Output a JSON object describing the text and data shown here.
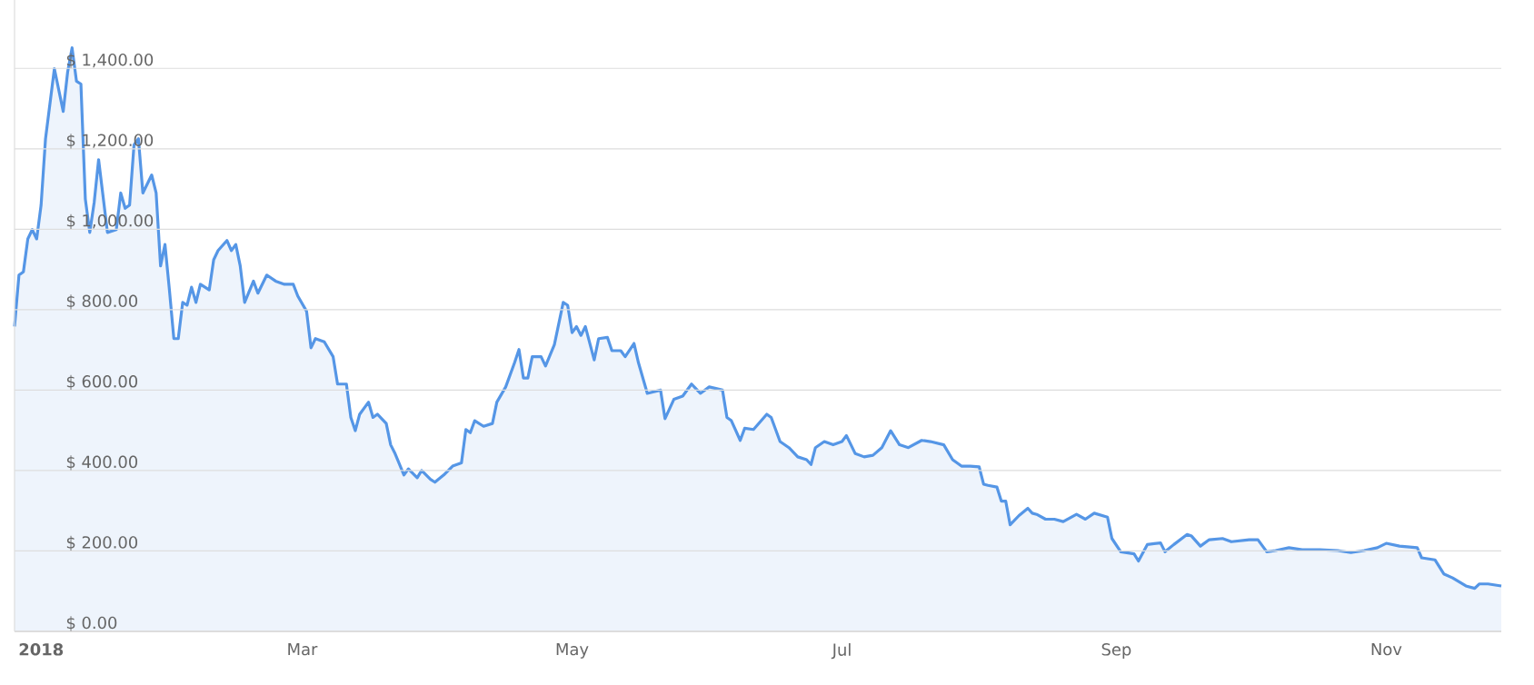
{
  "chart_data": {
    "type": "area",
    "grid": "y",
    "xlim": [
      "2017-12-26",
      "2018-11-27"
    ],
    "ylim": [
      0,
      1570
    ],
    "xticks": [
      {
        "value": "2018-01-01",
        "label": "2018"
      },
      {
        "value": "2018-03-01",
        "label": "Mar"
      },
      {
        "value": "2018-05-01",
        "label": "May"
      },
      {
        "value": "2018-07-01",
        "label": "Jul"
      },
      {
        "value": "2018-09-01",
        "label": "Sep"
      },
      {
        "value": "2018-11-01",
        "label": "Nov"
      }
    ],
    "yticks": [
      {
        "value": 0,
        "label": "$ 0.00"
      },
      {
        "value": 200,
        "label": "$ 200.00"
      },
      {
        "value": 400,
        "label": "$ 400.00"
      },
      {
        "value": 600,
        "label": "$ 600.00"
      },
      {
        "value": 800,
        "label": "$ 800.00"
      },
      {
        "value": 1000,
        "label": "$ 1,000.00"
      },
      {
        "value": 1200,
        "label": "$ 1,200.00"
      },
      {
        "value": 1400,
        "label": "$ 1,400.00"
      }
    ],
    "x": [
      "2017-12-26",
      "2017-12-27",
      "2017-12-28",
      "2017-12-29",
      "2017-12-30",
      "2017-12-31",
      "2018-01-01",
      "2018-01-02",
      "2018-01-04",
      "2018-01-06",
      "2018-01-07",
      "2018-01-08",
      "2018-01-09",
      "2018-01-10",
      "2018-01-11",
      "2018-01-12",
      "2018-01-13",
      "2018-01-14",
      "2018-01-16",
      "2018-01-18",
      "2018-01-19",
      "2018-01-20",
      "2018-01-21",
      "2018-01-22",
      "2018-01-23",
      "2018-01-24",
      "2018-01-26",
      "2018-01-27",
      "2018-01-28",
      "2018-01-29",
      "2018-01-30",
      "2018-01-31",
      "2018-02-01",
      "2018-02-02",
      "2018-02-03",
      "2018-02-04",
      "2018-02-05",
      "2018-02-06",
      "2018-02-08",
      "2018-02-09",
      "2018-02-10",
      "2018-02-12",
      "2018-02-13",
      "2018-02-14",
      "2018-02-15",
      "2018-02-16",
      "2018-02-18",
      "2018-02-19",
      "2018-02-21",
      "2018-02-23",
      "2018-02-25",
      "2018-02-27",
      "2018-02-28",
      "2018-03-02",
      "2018-03-03",
      "2018-03-04",
      "2018-03-06",
      "2018-03-08",
      "2018-03-09",
      "2018-03-11",
      "2018-03-12",
      "2018-03-13",
      "2018-03-14",
      "2018-03-16",
      "2018-03-17",
      "2018-03-18",
      "2018-03-20",
      "2018-03-21",
      "2018-03-22",
      "2018-03-24",
      "2018-03-25",
      "2018-03-27",
      "2018-03-28",
      "2018-03-30",
      "2018-03-31",
      "2018-04-02",
      "2018-04-04",
      "2018-04-06",
      "2018-04-07",
      "2018-04-08",
      "2018-04-09",
      "2018-04-11",
      "2018-04-13",
      "2018-04-14",
      "2018-04-16",
      "2018-04-18",
      "2018-04-19",
      "2018-04-20",
      "2018-04-21",
      "2018-04-22",
      "2018-04-24",
      "2018-04-25",
      "2018-04-27",
      "2018-04-29",
      "2018-04-30",
      "2018-05-01",
      "2018-05-02",
      "2018-05-03",
      "2018-05-04",
      "2018-05-06",
      "2018-05-07",
      "2018-05-09",
      "2018-05-10",
      "2018-05-12",
      "2018-05-13",
      "2018-05-15",
      "2018-05-16",
      "2018-05-18",
      "2018-05-21",
      "2018-05-22",
      "2018-05-24",
      "2018-05-26",
      "2018-05-28",
      "2018-05-30",
      "2018-06-01",
      "2018-06-04",
      "2018-06-05",
      "2018-06-06",
      "2018-06-08",
      "2018-06-09",
      "2018-06-11",
      "2018-06-14",
      "2018-06-15",
      "2018-06-17",
      "2018-06-19",
      "2018-06-21",
      "2018-06-23",
      "2018-06-24",
      "2018-06-25",
      "2018-06-27",
      "2018-06-29",
      "2018-07-01",
      "2018-07-02",
      "2018-07-04",
      "2018-07-06",
      "2018-07-08",
      "2018-07-10",
      "2018-07-12",
      "2018-07-14",
      "2018-07-16",
      "2018-07-19",
      "2018-07-21",
      "2018-07-24",
      "2018-07-26",
      "2018-07-28",
      "2018-07-30",
      "2018-08-01",
      "2018-08-02",
      "2018-08-03",
      "2018-08-05",
      "2018-08-06",
      "2018-08-07",
      "2018-08-08",
      "2018-08-10",
      "2018-08-12",
      "2018-08-13",
      "2018-08-14",
      "2018-08-16",
      "2018-08-18",
      "2018-08-20",
      "2018-08-23",
      "2018-08-25",
      "2018-08-27",
      "2018-08-30",
      "2018-08-31",
      "2018-09-02",
      "2018-09-05",
      "2018-09-06",
      "2018-09-08",
      "2018-09-11",
      "2018-09-12",
      "2018-09-14",
      "2018-09-17",
      "2018-09-18",
      "2018-09-20",
      "2018-09-22",
      "2018-09-25",
      "2018-09-27",
      "2018-10-01",
      "2018-10-03",
      "2018-10-05",
      "2018-10-07",
      "2018-10-10",
      "2018-10-13",
      "2018-10-17",
      "2018-10-21",
      "2018-10-24",
      "2018-10-27",
      "2018-10-30",
      "2018-11-01",
      "2018-11-04",
      "2018-11-08",
      "2018-11-09",
      "2018-11-12",
      "2018-11-14",
      "2018-11-16",
      "2018-11-19",
      "2018-11-21",
      "2018-11-22",
      "2018-11-24",
      "2018-11-27"
    ],
    "series": [
      {
        "color": "#5596e6",
        "values": [
          758,
          886,
          894,
          976,
          999,
          976,
          1060,
          1225,
          1399,
          1293,
          1391,
          1451,
          1368,
          1361,
          1075,
          992,
          1067,
          1173,
          992,
          999,
          1090,
          1052,
          1060,
          1210,
          1225,
          1090,
          1135,
          1090,
          909,
          962,
          849,
          728,
          728,
          818,
          811,
          856,
          818,
          863,
          849,
          924,
          947,
          972,
          947,
          962,
          909,
          818,
          871,
          841,
          886,
          871,
          863,
          863,
          834,
          796,
          705,
          728,
          720,
          683,
          615,
          615,
          532,
          499,
          540,
          570,
          532,
          540,
          517,
          464,
          442,
          389,
          404,
          382,
          400,
          378,
          371,
          389,
          411,
          419,
          502,
          494,
          524,
          510,
          517,
          570,
          608,
          668,
          701,
          630,
          630,
          683,
          683,
          660,
          713,
          818,
          811,
          743,
          758,
          736,
          758,
          675,
          728,
          731,
          698,
          698,
          683,
          716,
          668,
          592,
          600,
          529,
          577,
          585,
          615,
          592,
          608,
          600,
          532,
          524,
          475,
          505,
          502,
          540,
          532,
          472,
          457,
          434,
          427,
          415,
          457,
          472,
          464,
          472,
          487,
          442,
          434,
          438,
          457,
          499,
          464,
          457,
          475,
          472,
          464,
          427,
          411,
          411,
          409,
          366,
          363,
          359,
          324,
          324,
          265,
          288,
          306,
          294,
          291,
          279,
          279,
          273,
          291,
          279,
          294,
          284,
          231,
          198,
          193,
          175,
          216,
          220,
          198,
          216,
          241,
          237,
          212,
          228,
          231,
          223,
          228,
          228,
          198,
          201,
          208,
          203,
          203,
          201,
          196,
          201,
          208,
          219,
          212,
          208,
          183,
          178,
          143,
          133,
          113,
          107,
          118,
          118,
          113
        ]
      }
    ]
  }
}
